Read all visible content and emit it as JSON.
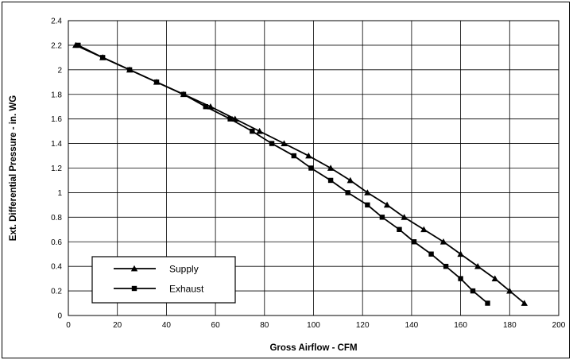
{
  "chart_data": {
    "type": "line",
    "xlabel": "Gross Airflow - CFM",
    "ylabel": "Ext. Differential Pressure - in. WG",
    "xlim": [
      0,
      200
    ],
    "ylim": [
      0,
      2.4
    ],
    "x_ticks": [
      "0",
      "20",
      "40",
      "60",
      "80",
      "100",
      "120",
      "140",
      "160",
      "180",
      "200"
    ],
    "y_ticks": [
      "0",
      "0.2",
      "0.4",
      "0.6",
      "0.8",
      "1",
      "1.2",
      "1.4",
      "1.6",
      "1.8",
      "2",
      "2.2",
      "2.4"
    ],
    "grid": true,
    "legend_position": "bottom-left",
    "series": [
      {
        "name": "Supply",
        "marker": "triangle",
        "color": "#000000",
        "x": [
          3,
          14,
          25,
          36,
          47,
          58,
          68,
          78,
          88,
          98,
          107,
          115,
          122,
          130,
          137,
          145,
          153,
          160,
          167,
          174,
          180,
          186
        ],
        "y": [
          2.2,
          2.1,
          2.0,
          1.9,
          1.8,
          1.7,
          1.6,
          1.5,
          1.4,
          1.3,
          1.2,
          1.1,
          1.0,
          0.9,
          0.8,
          0.7,
          0.6,
          0.5,
          0.4,
          0.3,
          0.2,
          0.1
        ]
      },
      {
        "name": "Exhaust",
        "marker": "square",
        "color": "#000000",
        "x": [
          4,
          14,
          25,
          36,
          47,
          56,
          66,
          75,
          83,
          92,
          99,
          107,
          114,
          122,
          128,
          135,
          141,
          148,
          154,
          160,
          165,
          171
        ],
        "y": [
          2.2,
          2.1,
          2.0,
          1.9,
          1.8,
          1.7,
          1.6,
          1.5,
          1.4,
          1.3,
          1.2,
          1.1,
          1.0,
          0.9,
          0.8,
          0.7,
          0.6,
          0.5,
          0.4,
          0.3,
          0.2,
          0.1
        ]
      }
    ]
  }
}
